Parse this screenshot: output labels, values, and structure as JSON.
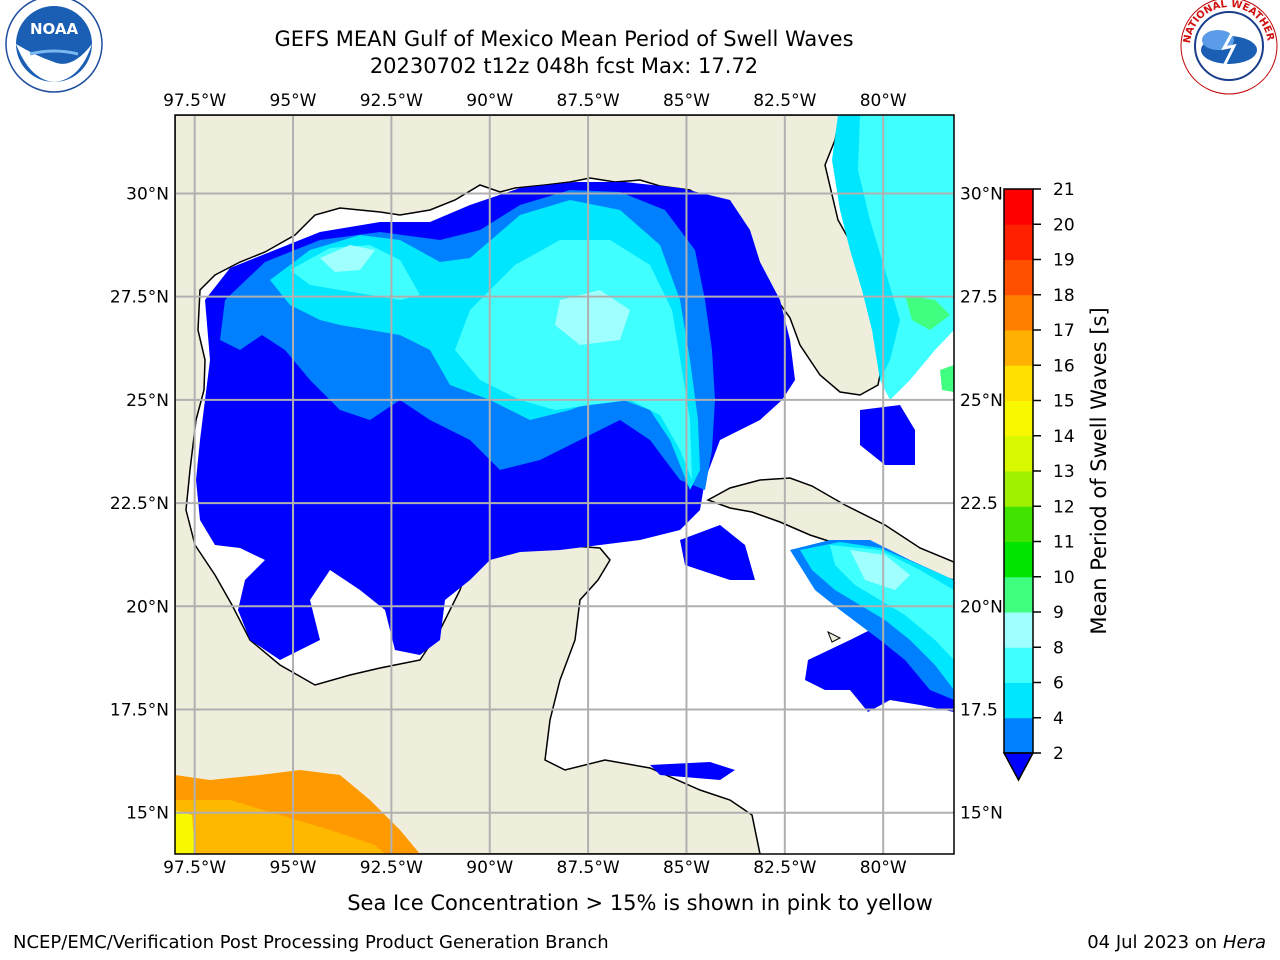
{
  "header": {
    "title_line1": "GEFS MEAN Gulf of Mexico Mean Period of Swell Waves",
    "title_line2": "20230702 t12z 048h fcst   Max: 17.72"
  },
  "logos": {
    "left": {
      "name": "noaa-logo",
      "text": "NOAA"
    },
    "right": {
      "name": "nws-logo",
      "text": "NATIONAL WEATHER SERVICE"
    }
  },
  "map": {
    "lon_range": [
      -98.0,
      -78.2
    ],
    "lat_range": [
      14.0,
      31.9
    ],
    "lon_ticks": [
      "97.5°W",
      "95°W",
      "92.5°W",
      "90°W",
      "87.5°W",
      "85°W",
      "82.5°W",
      "80°W"
    ],
    "lon_values": [
      -97.5,
      -95,
      -92.5,
      -90,
      -87.5,
      -85,
      -82.5,
      -80
    ],
    "lat_ticks_left": [
      "30°N",
      "27.5°N",
      "25°N",
      "22.5°N",
      "20°N",
      "17.5°N",
      "15°N"
    ],
    "lat_ticks_right": [
      "30°N",
      "27.5",
      "25°N",
      "22.5",
      "20°N",
      "17.5",
      "15°N"
    ],
    "lat_values": [
      30,
      27.5,
      25,
      22.5,
      20,
      17.5,
      15
    ],
    "gridlines": true,
    "land_color": "#efeedd",
    "ocean_color": "#ffffff"
  },
  "colorbar": {
    "label": "Mean Period of Swell Waves [s]",
    "ticks": [
      "2",
      "4",
      "6",
      "8",
      "9",
      "10",
      "11",
      "12",
      "13",
      "14",
      "15",
      "16",
      "17",
      "18",
      "19",
      "20",
      "21"
    ],
    "colors": [
      "#0000ff",
      "#0080ff",
      "#00e6ff",
      "#40ffff",
      "#a0ffff",
      "#40ff80",
      "#00e400",
      "#40e400",
      "#a0f000",
      "#d8f800",
      "#f8f800",
      "#ffe000",
      "#ffb000",
      "#ff8000",
      "#ff5000",
      "#ff2000",
      "#ff0000"
    ],
    "extend": "min"
  },
  "note": "Sea Ice Concentration > 15% is shown in pink to yellow",
  "footer": {
    "left": "NCEP/EMC/Verification Post Processing Product Generation Branch",
    "right_prefix": "04 Jul 2023 on ",
    "right_host": "Hera"
  }
}
